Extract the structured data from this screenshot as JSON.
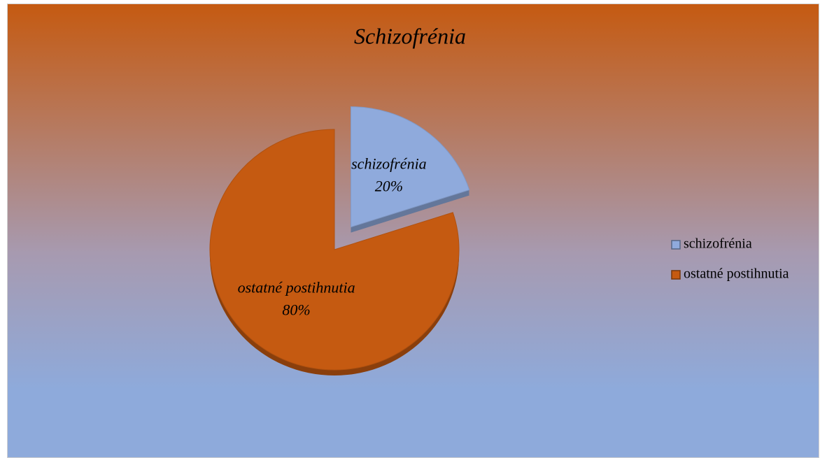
{
  "chart_data": {
    "type": "pie",
    "title": "Schizofrénia",
    "categories": [
      "schizofrénia",
      "ostatné postihnutia"
    ],
    "values": [
      20,
      80
    ],
    "value_labels": [
      "20%",
      "80%"
    ],
    "colors": [
      "#8faadc",
      "#c55a11"
    ],
    "legend": "right"
  }
}
